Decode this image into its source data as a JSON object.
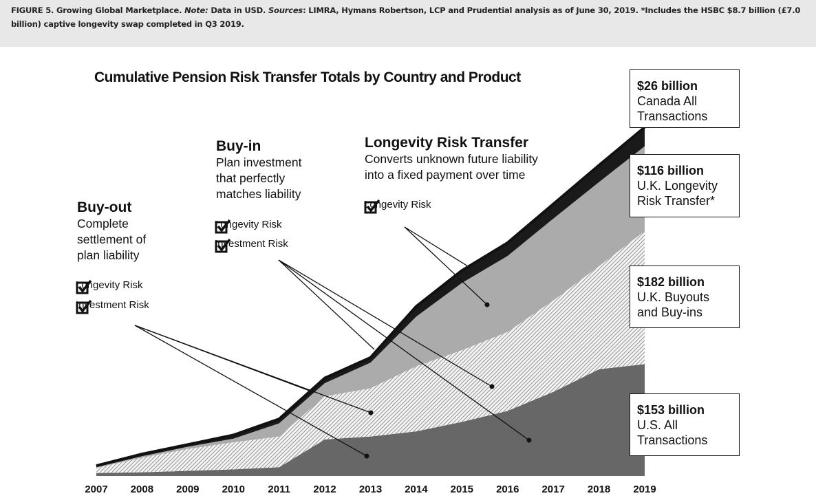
{
  "caption": {
    "figure": "FIGURE 5. Growing Global Marketplace.",
    "note_label": "Note:",
    "note": "Data in USD.",
    "sources_label": "Sources",
    "sources": ": LIMRA, Hymans Robertson, LCP and Prudential analysis as of June 30, 2019. *Includes the HSBC $8.7 billion (£7.0 billion) captive longevity swap completed in Q3 2019."
  },
  "annotations": {
    "buyout": {
      "heading": "Buy-out",
      "lines": [
        "Complete",
        "settlement of",
        "plan liability"
      ],
      "checks": [
        "Longevity Risk",
        "Investment Risk"
      ]
    },
    "buyin": {
      "heading": "Buy-in",
      "lines": [
        "Plan investment",
        "that perfectly",
        "matches liability"
      ],
      "checks": [
        "Longevity Risk",
        "Investment Risk"
      ]
    },
    "longevity": {
      "heading": "Longevity Risk Transfer",
      "lines": [
        "Converts unknown future liability",
        "into a fixed payment over time"
      ],
      "checks": [
        "Longevity Risk"
      ]
    }
  },
  "boxes": [
    {
      "amount": "$26 billion",
      "label1": "Canada All",
      "label2": "Transactions"
    },
    {
      "amount": "$116 billion",
      "label1": "U.K. Longevity",
      "label2": "Risk Transfer*"
    },
    {
      "amount": "$182 billion",
      "label1": "U.K. Buyouts",
      "label2": "and Buy-ins"
    },
    {
      "amount": "$153 billion",
      "label1": "U.S. All",
      "label2": "Transactions"
    }
  ],
  "chart_data": {
    "type": "area",
    "stacked": true,
    "title": "Cumulative Pension Risk Transfer Totals by Country and Product",
    "xlabel": "",
    "ylabel": "",
    "units": "USD billion (cumulative)",
    "categories": [
      "2007",
      "2008",
      "2009",
      "2010",
      "2011",
      "2012",
      "2013",
      "2014",
      "2015",
      "2016",
      "2017",
      "2018",
      "2019"
    ],
    "ylim": [
      0,
      480
    ],
    "grid": false,
    "series": [
      {
        "name": "U.S. All Transactions",
        "color": "#676767",
        "values": [
          4,
          5,
          7,
          9,
          12,
          50,
          54,
          61,
          74,
          89,
          115,
          146,
          153
        ]
      },
      {
        "name": "U.K. Buyouts and Buy-ins",
        "color": "hatched",
        "values": [
          7,
          20,
          30,
          37,
          42,
          59,
          66,
          89,
          98,
          108,
          125,
          141,
          182
        ]
      },
      {
        "name": "U.K. Longevity Risk Transfer*",
        "color": "#ababab",
        "values": [
          1,
          2,
          3,
          5,
          18,
          18,
          35,
          68,
          92,
          104,
          112,
          115,
          116
        ]
      },
      {
        "name": "Canada All Transactions",
        "color": "#1a1a1a",
        "values": [
          2,
          3,
          3,
          5,
          6,
          7,
          7,
          14,
          17,
          18,
          20,
          23,
          26
        ]
      }
    ]
  }
}
